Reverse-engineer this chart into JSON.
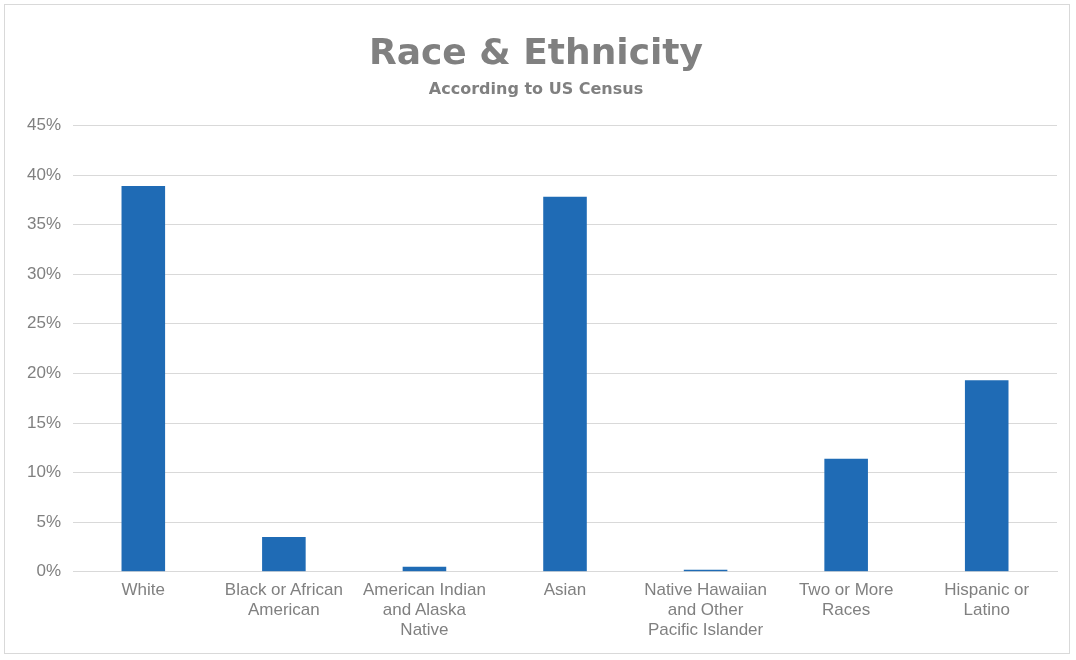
{
  "chart_data": {
    "type": "bar",
    "title": "Race & Ethnicity",
    "subtitle": "According to US Census",
    "categories": [
      "White",
      "Black or African American",
      "American Indian and Alaska Native",
      "Asian",
      "Native Hawaiian and Other Pacific Islander",
      "Two or More Races",
      "Hispanic or Latino"
    ],
    "values": [
      38.9,
      3.5,
      0.5,
      37.8,
      0.2,
      11.4,
      19.3
    ],
    "color": "#1f6bb5",
    "ylim": [
      0,
      45
    ],
    "yticks": [
      {
        "value": 0,
        "label": "0%"
      },
      {
        "value": 5,
        "label": "5%"
      },
      {
        "value": 10,
        "label": "10%"
      },
      {
        "value": 15,
        "label": "15%"
      },
      {
        "value": 20,
        "label": "20%"
      },
      {
        "value": 25,
        "label": "25%"
      },
      {
        "value": 30,
        "label": "30%"
      },
      {
        "value": 35,
        "label": "35%"
      },
      {
        "value": 40,
        "label": "40%"
      },
      {
        "value": 45,
        "label": "45%"
      }
    ],
    "grid": "y",
    "legend": false
  }
}
